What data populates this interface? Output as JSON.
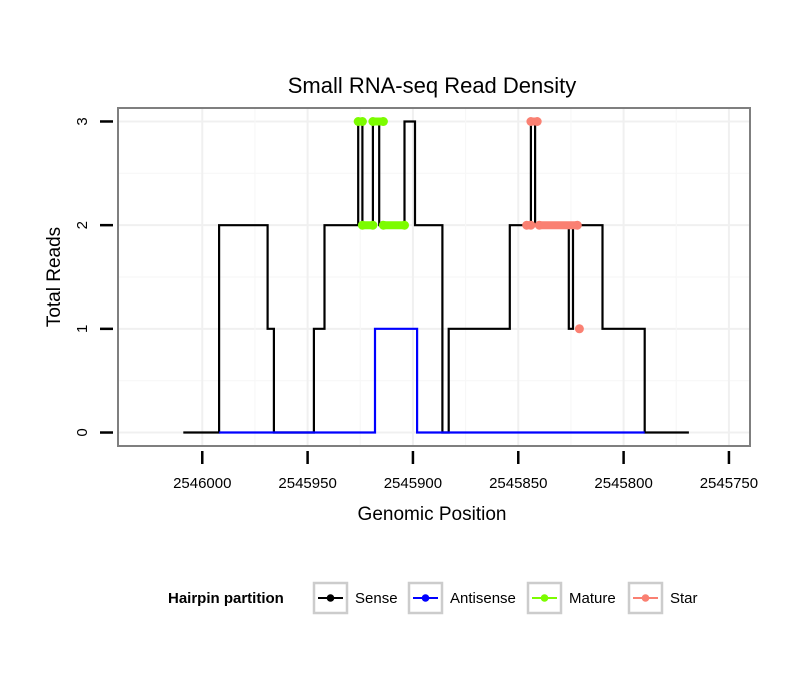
{
  "chart_data": {
    "type": "line",
    "title": "Small RNA-seq Read Density",
    "xlabel": "Genomic Position",
    "ylabel": "Total Reads",
    "xlim": [
      2546040,
      2545740
    ],
    "ylim": [
      -0.13,
      3.13
    ],
    "x_reversed": true,
    "x_ticks": [
      2546000,
      2545950,
      2545900,
      2545850,
      2545800,
      2545750
    ],
    "x_tick_labels": [
      "2546000",
      "2545950",
      "2545900",
      "2545850",
      "2545800",
      "2545750"
    ],
    "y_ticks": [
      0,
      1,
      2,
      3
    ],
    "y_tick_labels": [
      "0",
      "1",
      "2",
      "3"
    ],
    "grid": true,
    "legend": {
      "title": "Hairpin partition",
      "placement": "bottom",
      "entries": [
        {
          "name": "Sense",
          "color": "#000000"
        },
        {
          "name": "Antisense",
          "color": "#0000ff"
        },
        {
          "name": "Mature",
          "color": "#7cfc00"
        },
        {
          "name": "Star",
          "color": "#fa8072"
        }
      ]
    },
    "series": [
      {
        "name": "Sense",
        "color": "#000000",
        "step": true,
        "points": [
          [
            2546009,
            0
          ],
          [
            2545992,
            0
          ],
          [
            2545992,
            2
          ],
          [
            2545969,
            2
          ],
          [
            2545969,
            1
          ],
          [
            2545966,
            1
          ],
          [
            2545966,
            0
          ],
          [
            2545947,
            0
          ],
          [
            2545947,
            1
          ],
          [
            2545942,
            1
          ],
          [
            2545942,
            2
          ],
          [
            2545926,
            2
          ],
          [
            2545926,
            3
          ],
          [
            2545924,
            3
          ],
          [
            2545924,
            2
          ],
          [
            2545919,
            2
          ],
          [
            2545919,
            3
          ],
          [
            2545916,
            3
          ],
          [
            2545916,
            2
          ],
          [
            2545904,
            2
          ],
          [
            2545904,
            3
          ],
          [
            2545899,
            3
          ],
          [
            2545899,
            2
          ],
          [
            2545886,
            2
          ],
          [
            2545886,
            0
          ],
          [
            2545883,
            0
          ],
          [
            2545883,
            1
          ],
          [
            2545854,
            1
          ],
          [
            2545854,
            2
          ],
          [
            2545844,
            2
          ],
          [
            2545844,
            3
          ],
          [
            2545842,
            3
          ],
          [
            2545842,
            2
          ],
          [
            2545826,
            2
          ],
          [
            2545826,
            1
          ],
          [
            2545824,
            1
          ],
          [
            2545824,
            2
          ],
          [
            2545810,
            2
          ],
          [
            2545810,
            1
          ],
          [
            2545790,
            1
          ],
          [
            2545790,
            0
          ],
          [
            2545769,
            0
          ]
        ]
      },
      {
        "name": "Antisense",
        "color": "#0000ff",
        "step": true,
        "points": [
          [
            2545992,
            0
          ],
          [
            2545918,
            0
          ],
          [
            2545918,
            1
          ],
          [
            2545898,
            1
          ],
          [
            2545898,
            0
          ],
          [
            2545790,
            0
          ]
        ]
      },
      {
        "name": "Mature",
        "color": "#7cfc00",
        "step": false,
        "segments": [
          [
            [
              2545926,
              3
            ],
            [
              2545924,
              3
            ]
          ],
          [
            [
              2545919,
              3
            ],
            [
              2545914,
              3
            ]
          ],
          [
            [
              2545924,
              2
            ],
            [
              2545919,
              2
            ]
          ],
          [
            [
              2545914,
              2
            ],
            [
              2545904,
              2
            ]
          ]
        ]
      },
      {
        "name": "Star",
        "color": "#fa8072",
        "step": false,
        "segments": [
          [
            [
              2545844,
              3
            ],
            [
              2545841,
              3
            ]
          ],
          [
            [
              2545846,
              2
            ],
            [
              2545844,
              2
            ]
          ],
          [
            [
              2545840,
              2
            ],
            [
              2545822,
              2
            ]
          ],
          [
            [
              2545821,
              1
            ]
          ]
        ]
      }
    ]
  }
}
